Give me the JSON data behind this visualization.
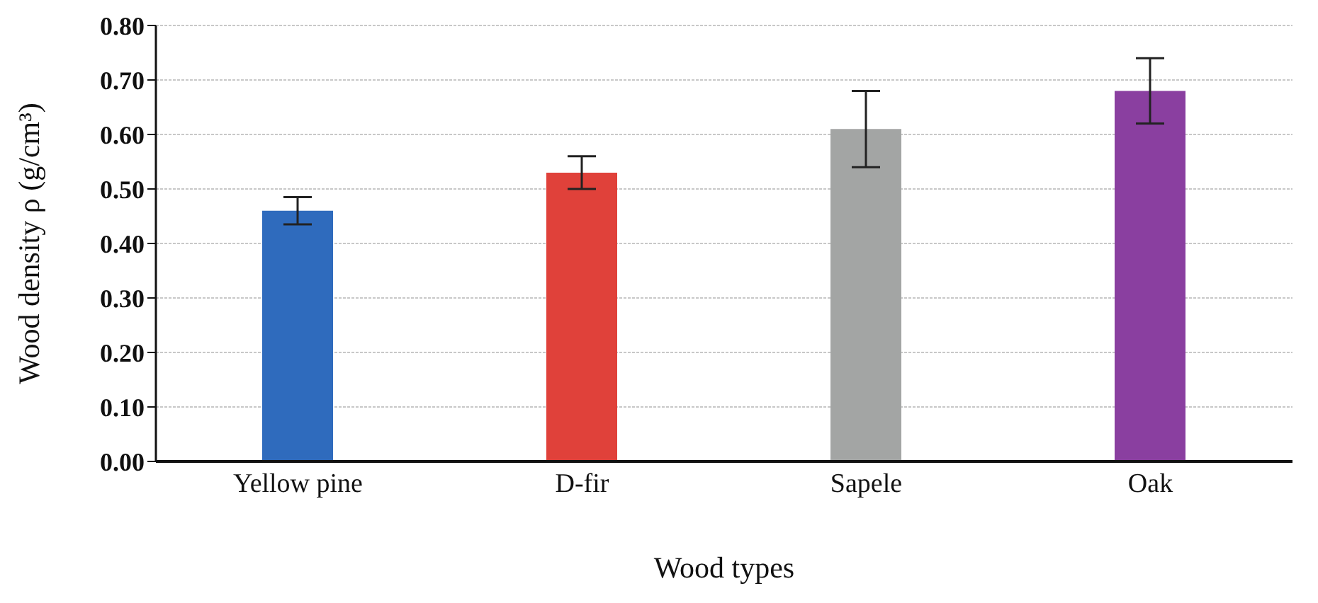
{
  "chart_data": {
    "type": "bar",
    "xlabel": "Wood types",
    "ylabel": "Wood density ρ (g/cm³)",
    "categories": [
      "Yellow pine",
      "D-fir",
      "Sapele",
      "Oak"
    ],
    "values": [
      0.46,
      0.53,
      0.61,
      0.68
    ],
    "errors": [
      0.025,
      0.03,
      0.07,
      0.06
    ],
    "colors": [
      "#2f6bbd",
      "#e0413a",
      "#a3a5a4",
      "#8a3fa0"
    ],
    "ylim": [
      0,
      0.8
    ],
    "yticks": [
      {
        "value": 0,
        "label": "0.00"
      },
      {
        "value": 0.1,
        "label": "0.10"
      },
      {
        "value": 0.2,
        "label": "0.20"
      },
      {
        "value": 0.3,
        "label": "0.30"
      },
      {
        "value": 0.4,
        "label": "0.40"
      },
      {
        "value": 0.5,
        "label": "0.50"
      },
      {
        "value": 0.6,
        "label": "0.60"
      },
      {
        "value": 0.7,
        "label": "0.70"
      },
      {
        "value": 0.8,
        "label": "0.80"
      }
    ],
    "grid": "y"
  }
}
